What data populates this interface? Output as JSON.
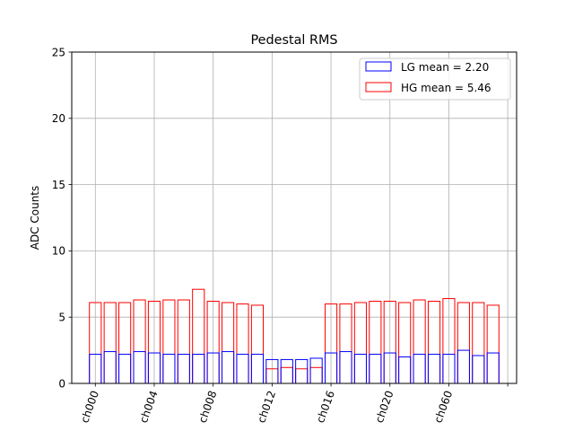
{
  "chart_data": {
    "type": "bar",
    "title": "Pedestal RMS",
    "xlabel": "",
    "ylabel": "ADC Counts",
    "ylim": [
      0,
      25
    ],
    "yticks": [
      0,
      5,
      10,
      15,
      20,
      25
    ],
    "grid": true,
    "legend_position": "top-right",
    "x_tick_labels": [
      "ch000",
      "ch004",
      "ch008",
      "ch012",
      "ch016",
      "ch020",
      "ch060",
      ""
    ],
    "x_tick_positions": [
      0,
      4,
      8,
      12,
      16,
      20,
      24,
      28
    ],
    "n_channels": 28,
    "series": [
      {
        "name": "LG mean = 2.20",
        "color": "#0000ff",
        "values": [
          2.2,
          2.4,
          2.2,
          2.4,
          2.3,
          2.2,
          2.2,
          2.2,
          2.3,
          2.4,
          2.2,
          2.2,
          1.8,
          1.8,
          1.8,
          1.9,
          2.3,
          2.4,
          2.2,
          2.2,
          2.3,
          2.0,
          2.2,
          2.2,
          2.2,
          2.5,
          2.1,
          2.3
        ]
      },
      {
        "name": "HG mean = 5.46",
        "color": "#ff0000",
        "values": [
          6.1,
          6.1,
          6.1,
          6.3,
          6.2,
          6.3,
          6.3,
          7.1,
          6.2,
          6.1,
          6.0,
          5.9,
          1.1,
          1.2,
          1.1,
          1.2,
          6.0,
          6.0,
          6.1,
          6.2,
          6.2,
          6.1,
          6.3,
          6.2,
          6.4,
          6.1,
          6.1,
          5.9
        ]
      }
    ]
  }
}
